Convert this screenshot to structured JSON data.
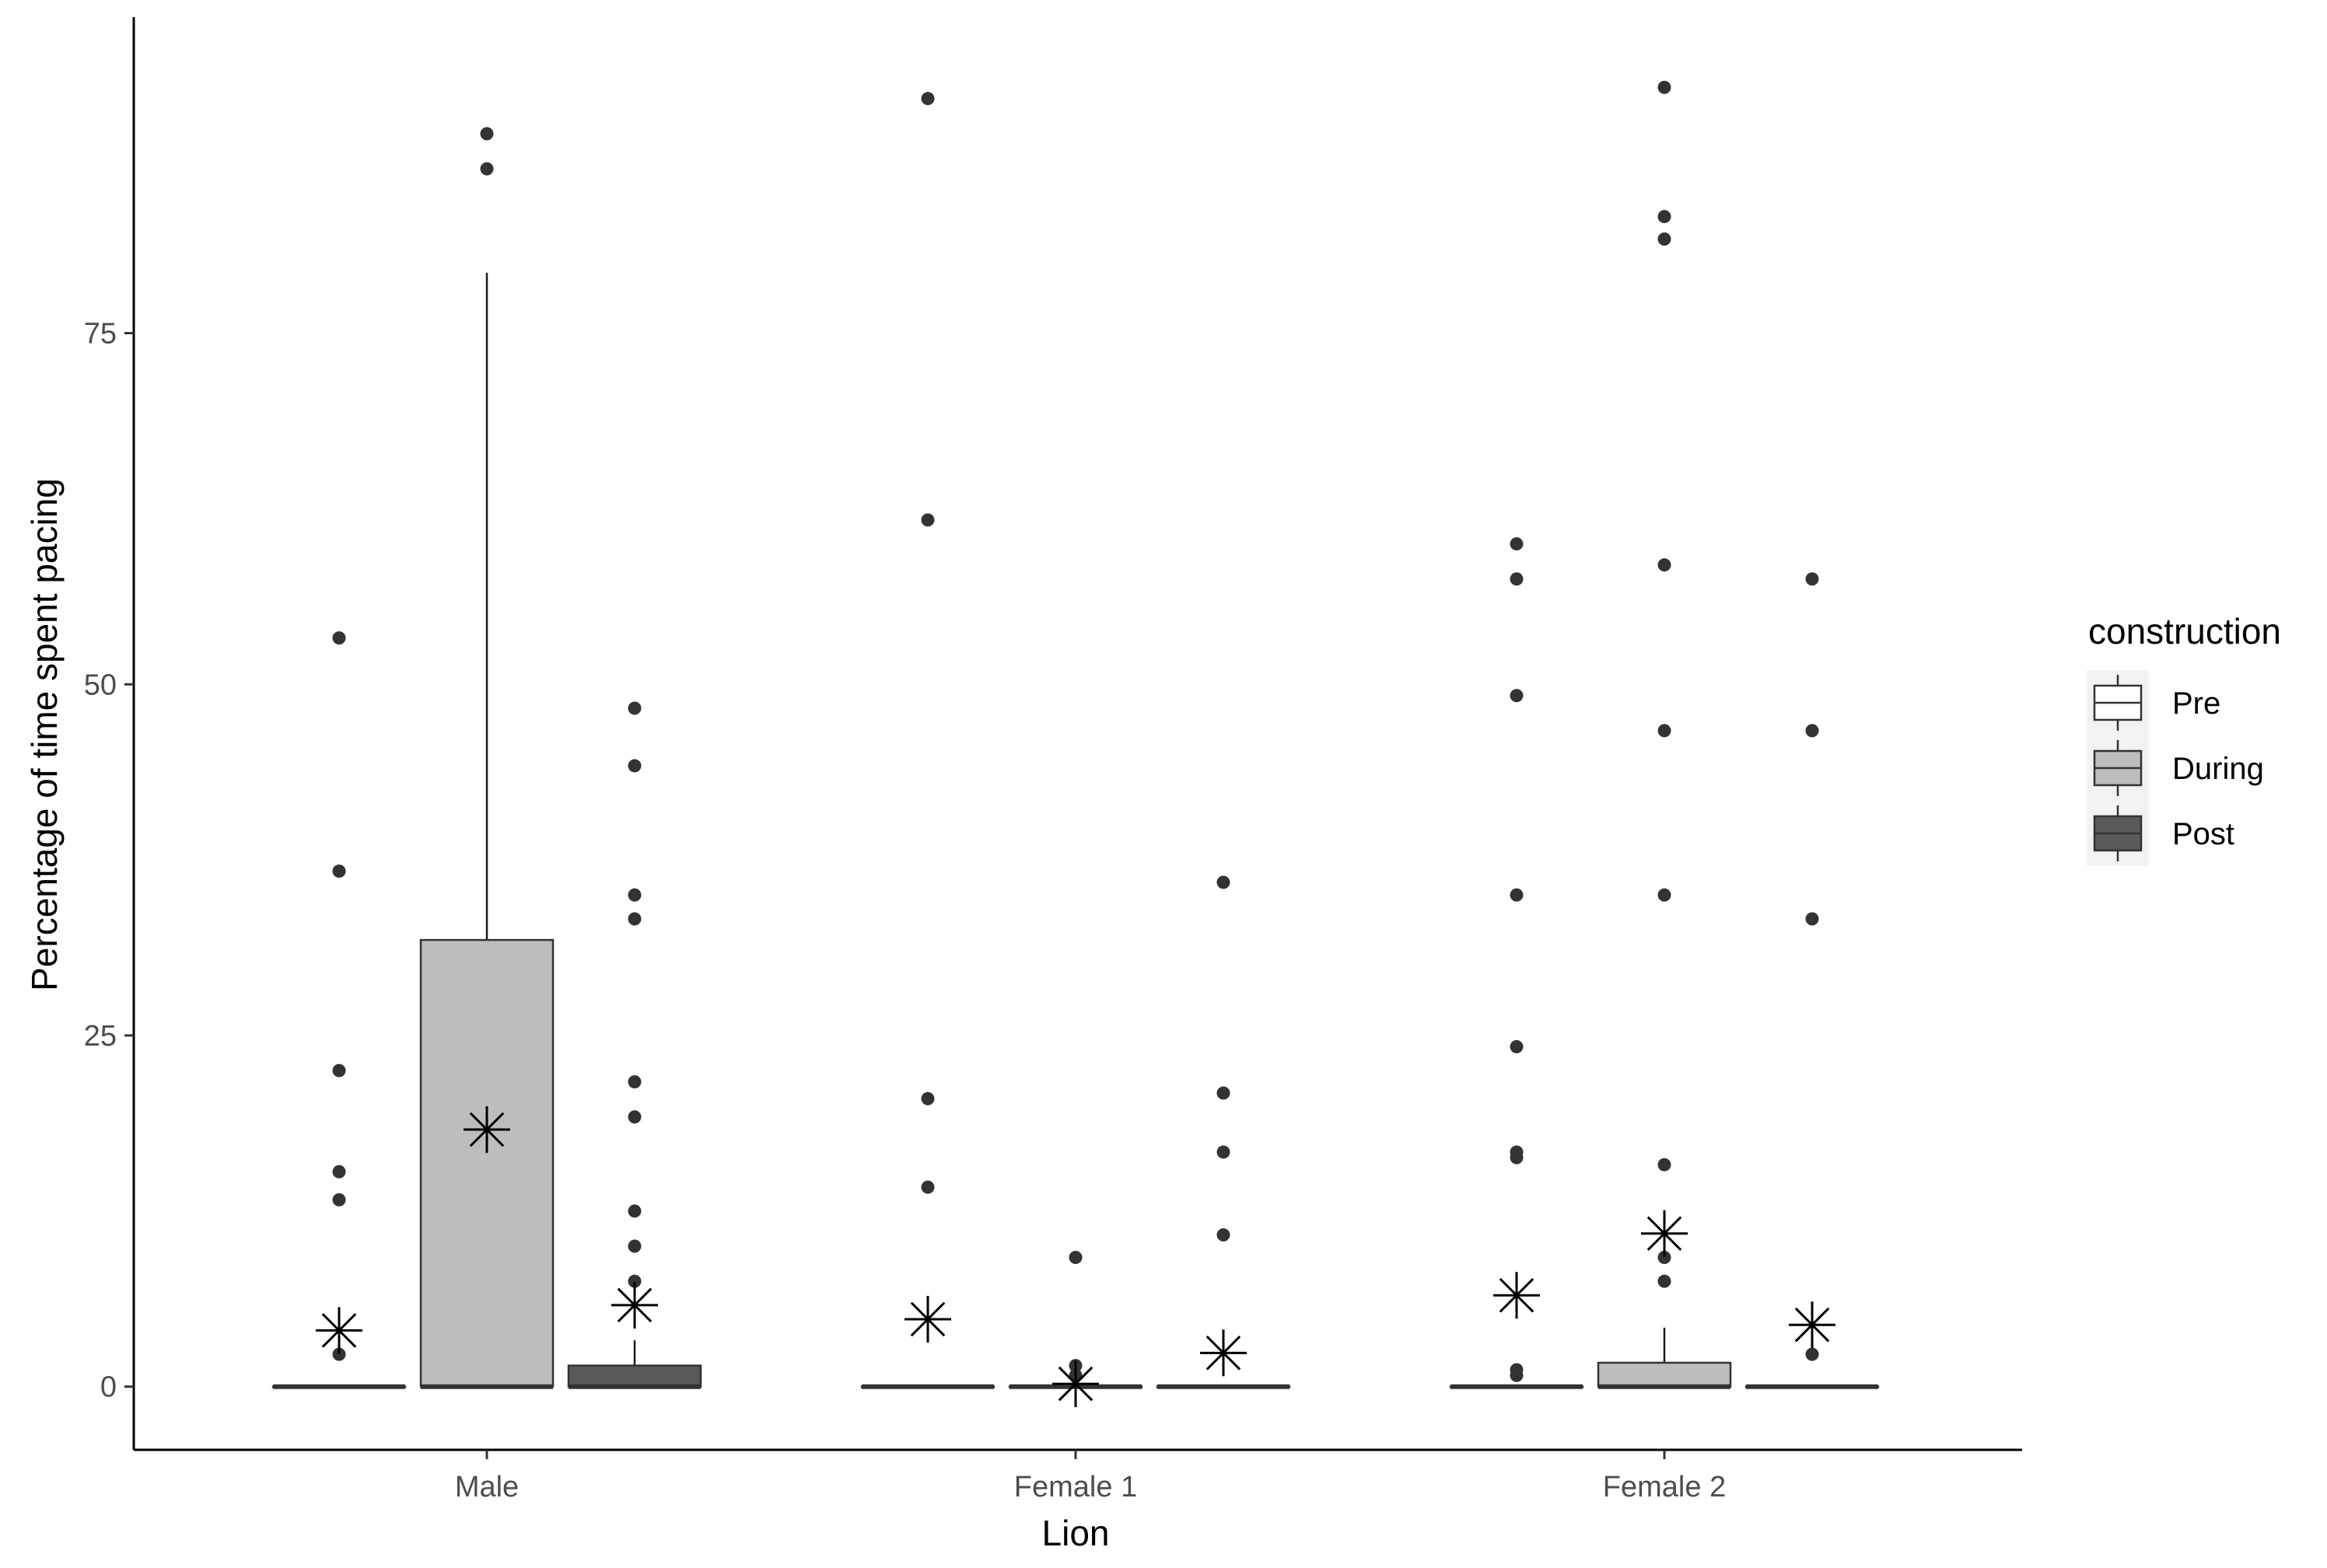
{
  "chart_data": {
    "type": "box",
    "xlabel": "Lion",
    "ylabel": "Percentage of time spent pacing",
    "categories": [
      "Male",
      "Female 1",
      "Female 2"
    ],
    "y_ticks": [
      0,
      25,
      50,
      75
    ],
    "ylim": [
      -4.5,
      97.5
    ],
    "grid": false,
    "legend": {
      "title": "construction",
      "position": "right",
      "entries": [
        {
          "label": "Pre",
          "fill": "#ffffff"
        },
        {
          "label": "During",
          "fill": "#bdbdbd"
        },
        {
          "label": "Post",
          "fill": "#595959"
        }
      ]
    },
    "groups": [
      {
        "category": "Male",
        "boxes": [
          {
            "series": "Pre",
            "q1": 0,
            "median": 0,
            "q3": 0,
            "whisker_low": 0,
            "whisker_high": 0,
            "mean": 4.0,
            "outliers": [
              2.3,
              13.3,
              15.3,
              22.5,
              36.7,
              53.3
            ]
          },
          {
            "series": "During",
            "q1": 0,
            "median": 0,
            "q3": 31.8,
            "whisker_low": 0,
            "whisker_high": 79.3,
            "mean": 18.3,
            "outliers": [
              86.7,
              89.2
            ]
          },
          {
            "series": "Post",
            "q1": 0,
            "median": 0,
            "q3": 1.5,
            "whisker_low": 0,
            "whisker_high": 3.3,
            "mean": 5.8,
            "outliers": [
              7.5,
              10.0,
              12.5,
              19.2,
              21.7,
              33.3,
              35.0,
              44.2,
              48.3
            ]
          }
        ]
      },
      {
        "category": "Female 1",
        "boxes": [
          {
            "series": "Pre",
            "q1": 0,
            "median": 0,
            "q3": 0,
            "whisker_low": 0,
            "whisker_high": 0,
            "mean": 4.8,
            "outliers": [
              14.2,
              20.5,
              61.7,
              91.7
            ]
          },
          {
            "series": "During",
            "q1": 0,
            "median": 0,
            "q3": 0,
            "whisker_low": 0,
            "whisker_high": 0,
            "mean": 0.2,
            "outliers": [
              0.8,
              1.5,
              9.2
            ]
          },
          {
            "series": "Post",
            "q1": 0,
            "median": 0,
            "q3": 0,
            "whisker_low": 0,
            "whisker_high": 0,
            "mean": 2.4,
            "outliers": [
              10.8,
              16.7,
              20.9,
              35.9
            ]
          }
        ]
      },
      {
        "category": "Female 2",
        "boxes": [
          {
            "series": "Pre",
            "q1": 0,
            "median": 0,
            "q3": 0,
            "whisker_low": 0,
            "whisker_high": 0,
            "mean": 6.5,
            "outliers": [
              0.8,
              1.2,
              16.3,
              16.7,
              24.2,
              35.0,
              49.2,
              57.5,
              60.0
            ]
          },
          {
            "series": "During",
            "q1": 0,
            "median": 0,
            "q3": 1.7,
            "whisker_low": 0,
            "whisker_high": 4.2,
            "mean": 10.9,
            "outliers": [
              7.5,
              9.2,
              15.8,
              35.0,
              46.7,
              58.5,
              81.7,
              83.3,
              92.5
            ]
          },
          {
            "series": "Post",
            "q1": 0,
            "median": 0,
            "q3": 0,
            "whisker_low": 0,
            "whisker_high": 0,
            "mean": 4.4,
            "outliers": [
              2.3,
              33.3,
              46.7,
              57.5
            ]
          }
        ]
      }
    ]
  }
}
